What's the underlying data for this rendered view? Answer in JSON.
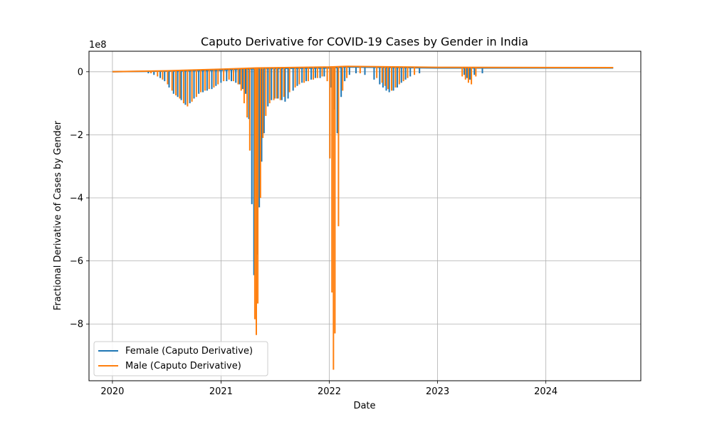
{
  "chart_data": {
    "type": "line",
    "title": "Caputo Derivative for COVID-19 Cases by Gender in India",
    "xlabel": "Date",
    "ylabel": "Fractional Derivative of Cases by Gender",
    "y_offset_label": "1e8",
    "y_scale": 100000000,
    "xlim": [
      "2019-10-14",
      "2024-11-16"
    ],
    "ylim": [
      -9.8,
      0.65
    ],
    "x_ticks": [
      {
        "date": "2020-01-01",
        "label": "2020"
      },
      {
        "date": "2021-01-01",
        "label": "2021"
      },
      {
        "date": "2022-01-01",
        "label": "2022"
      },
      {
        "date": "2023-01-01",
        "label": "2023"
      },
      {
        "date": "2024-01-01",
        "label": "2024"
      }
    ],
    "y_ticks": [
      {
        "value": 0,
        "label": "0"
      },
      {
        "value": -2,
        "label": "−2"
      },
      {
        "value": -4,
        "label": "−4"
      },
      {
        "value": -6,
        "label": "−6"
      },
      {
        "value": -8,
        "label": "−8"
      }
    ],
    "grid": true,
    "legend_position": "lower-left",
    "series": [
      {
        "name": "Female (Caputo Derivative)",
        "color": "#1f77b4",
        "baseline": [
          [
            "2020-01-01",
            0
          ],
          [
            "2020-07-01",
            0.02
          ],
          [
            "2021-01-01",
            0.05
          ],
          [
            "2021-05-01",
            0.1
          ],
          [
            "2022-01-01",
            0.12
          ],
          [
            "2022-03-01",
            0.15
          ],
          [
            "2023-01-01",
            0.12
          ],
          [
            "2024-08-15",
            0.12
          ]
        ],
        "spikes": [
          [
            "2020-05-01",
            -0.05
          ],
          [
            "2020-05-20",
            -0.1
          ],
          [
            "2020-06-10",
            -0.2
          ],
          [
            "2020-06-25",
            -0.3
          ],
          [
            "2020-07-10",
            -0.5
          ],
          [
            "2020-07-25",
            -0.7
          ],
          [
            "2020-08-08",
            -0.8
          ],
          [
            "2020-08-20",
            -0.9
          ],
          [
            "2020-09-03",
            -1.05
          ],
          [
            "2020-09-18",
            -1.0
          ],
          [
            "2020-10-02",
            -0.85
          ],
          [
            "2020-10-18",
            -0.7
          ],
          [
            "2020-11-01",
            -0.65
          ],
          [
            "2020-11-15",
            -0.6
          ],
          [
            "2020-12-01",
            -0.55
          ],
          [
            "2020-12-15",
            -0.45
          ],
          [
            "2021-01-01",
            -0.35
          ],
          [
            "2021-01-20",
            -0.3
          ],
          [
            "2021-02-05",
            -0.3
          ],
          [
            "2021-02-20",
            -0.35
          ],
          [
            "2021-03-05",
            -0.4
          ],
          [
            "2021-03-15",
            -0.55
          ],
          [
            "2021-03-25",
            -0.7
          ],
          [
            "2021-04-05",
            -1.5
          ],
          [
            "2021-04-15",
            -4.2
          ],
          [
            "2021-04-22",
            -6.45
          ],
          [
            "2021-05-02",
            -5.8
          ],
          [
            "2021-05-10",
            -4.3
          ],
          [
            "2021-05-18",
            -2.85
          ],
          [
            "2021-05-26",
            -1.95
          ],
          [
            "2021-06-08",
            -1.1
          ],
          [
            "2021-06-20",
            -0.9
          ],
          [
            "2021-07-01",
            -0.85
          ],
          [
            "2021-07-12",
            -0.85
          ],
          [
            "2021-07-25",
            -0.9
          ],
          [
            "2021-08-05",
            -0.95
          ],
          [
            "2021-08-15",
            -0.85
          ],
          [
            "2021-09-01",
            -0.6
          ],
          [
            "2021-09-15",
            -0.45
          ],
          [
            "2021-10-01",
            -0.35
          ],
          [
            "2021-10-15",
            -0.3
          ],
          [
            "2021-11-01",
            -0.25
          ],
          [
            "2021-11-15",
            -0.2
          ],
          [
            "2021-12-01",
            -0.2
          ],
          [
            "2021-12-15",
            -0.15
          ],
          [
            "2022-01-08",
            -0.5
          ],
          [
            "2022-01-18",
            -1.2
          ],
          [
            "2022-01-28",
            -1.95
          ],
          [
            "2022-02-10",
            -0.8
          ],
          [
            "2022-02-22",
            -0.3
          ],
          [
            "2022-03-10",
            -0.1
          ],
          [
            "2022-04-01",
            -0.05
          ],
          [
            "2022-05-01",
            -0.1
          ],
          [
            "2022-06-01",
            -0.25
          ],
          [
            "2022-06-20",
            -0.4
          ],
          [
            "2022-07-01",
            -0.5
          ],
          [
            "2022-07-12",
            -0.6
          ],
          [
            "2022-07-22",
            -0.65
          ],
          [
            "2022-08-05",
            -0.6
          ],
          [
            "2022-08-18",
            -0.5
          ],
          [
            "2022-09-01",
            -0.35
          ],
          [
            "2022-09-15",
            -0.25
          ],
          [
            "2022-10-01",
            -0.15
          ],
          [
            "2022-11-01",
            -0.05
          ],
          [
            "2023-04-01",
            -0.1
          ],
          [
            "2023-04-10",
            -0.2
          ],
          [
            "2023-04-20",
            -0.25
          ],
          [
            "2023-05-05",
            -0.1
          ],
          [
            "2023-06-01",
            -0.05
          ]
        ]
      },
      {
        "name": "Male (Caputo Derivative)",
        "color": "#ff7f0e",
        "baseline": [
          [
            "2020-01-01",
            0
          ],
          [
            "2020-07-01",
            0.03
          ],
          [
            "2021-01-01",
            0.08
          ],
          [
            "2021-05-01",
            0.12
          ],
          [
            "2022-01-01",
            0.15
          ],
          [
            "2022-03-01",
            0.17
          ],
          [
            "2023-01-01",
            0.14
          ],
          [
            "2024-08-15",
            0.13
          ]
        ],
        "spikes": [
          [
            "2020-05-10",
            -0.05
          ],
          [
            "2020-06-01",
            -0.15
          ],
          [
            "2020-06-18",
            -0.25
          ],
          [
            "2020-07-05",
            -0.4
          ],
          [
            "2020-07-20",
            -0.6
          ],
          [
            "2020-08-02",
            -0.75
          ],
          [
            "2020-08-15",
            -0.85
          ],
          [
            "2020-08-28",
            -1.0
          ],
          [
            "2020-09-10",
            -1.1
          ],
          [
            "2020-09-25",
            -0.95
          ],
          [
            "2020-10-10",
            -0.8
          ],
          [
            "2020-10-25",
            -0.65
          ],
          [
            "2020-11-08",
            -0.6
          ],
          [
            "2020-11-22",
            -0.55
          ],
          [
            "2020-12-08",
            -0.5
          ],
          [
            "2020-12-22",
            -0.4
          ],
          [
            "2021-01-10",
            -0.3
          ],
          [
            "2021-01-28",
            -0.25
          ],
          [
            "2021-02-12",
            -0.3
          ],
          [
            "2021-02-28",
            -0.4
          ],
          [
            "2021-03-10",
            -0.6
          ],
          [
            "2021-03-20",
            -1.0
          ],
          [
            "2021-03-30",
            -1.45
          ],
          [
            "2021-04-08",
            -2.5
          ],
          [
            "2021-04-25",
            -7.85
          ],
          [
            "2021-04-30",
            -8.35
          ],
          [
            "2021-05-05",
            -7.35
          ],
          [
            "2021-05-14",
            -4.0
          ],
          [
            "2021-05-22",
            -2.1
          ],
          [
            "2021-06-01",
            -1.4
          ],
          [
            "2021-06-14",
            -1.0
          ],
          [
            "2021-06-28",
            -0.9
          ],
          [
            "2021-07-08",
            -0.85
          ],
          [
            "2021-07-20",
            -0.9
          ],
          [
            "2021-08-01",
            -0.8
          ],
          [
            "2021-08-20",
            -0.65
          ],
          [
            "2021-09-08",
            -0.5
          ],
          [
            "2021-09-22",
            -0.4
          ],
          [
            "2021-10-08",
            -0.35
          ],
          [
            "2021-10-22",
            -0.3
          ],
          [
            "2021-11-08",
            -0.25
          ],
          [
            "2021-11-22",
            -0.2
          ],
          [
            "2021-12-08",
            -0.15
          ],
          [
            "2021-12-25",
            -0.3
          ],
          [
            "2022-01-03",
            -2.75
          ],
          [
            "2022-01-10",
            -7.0
          ],
          [
            "2022-01-15",
            -9.45
          ],
          [
            "2022-01-20",
            -8.3
          ],
          [
            "2022-02-01",
            -4.9
          ],
          [
            "2022-02-15",
            -0.6
          ],
          [
            "2022-03-01",
            -0.2
          ],
          [
            "2022-04-15",
            -0.05
          ],
          [
            "2022-06-10",
            -0.2
          ],
          [
            "2022-06-28",
            -0.35
          ],
          [
            "2022-07-08",
            -0.45
          ],
          [
            "2022-07-18",
            -0.55
          ],
          [
            "2022-07-30",
            -0.6
          ],
          [
            "2022-08-12",
            -0.5
          ],
          [
            "2022-08-25",
            -0.4
          ],
          [
            "2022-09-08",
            -0.3
          ],
          [
            "2022-09-22",
            -0.2
          ],
          [
            "2022-10-15",
            -0.1
          ],
          [
            "2023-03-25",
            -0.15
          ],
          [
            "2023-04-05",
            -0.25
          ],
          [
            "2023-04-15",
            -0.35
          ],
          [
            "2023-04-25",
            -0.4
          ],
          [
            "2023-05-10",
            -0.15
          ]
        ]
      }
    ]
  }
}
